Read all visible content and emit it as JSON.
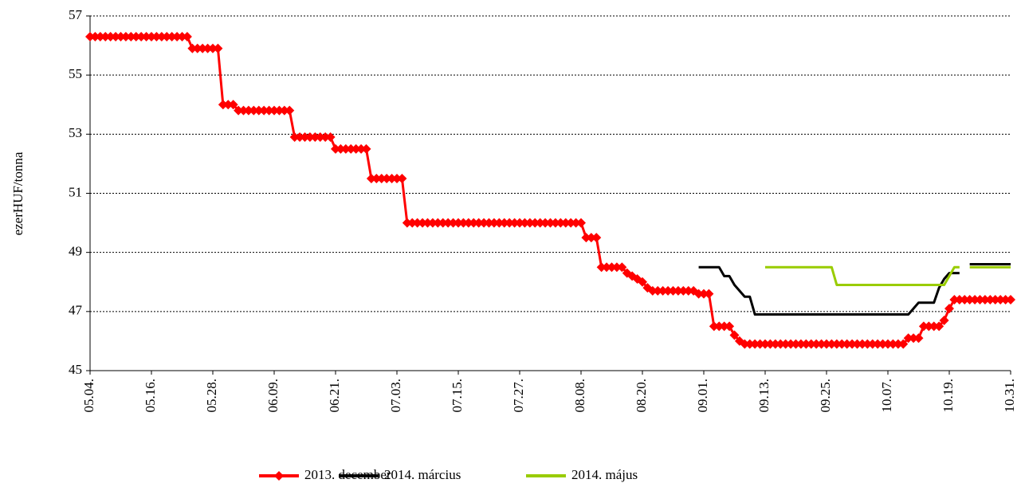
{
  "chart_data": {
    "type": "line",
    "y_label": "ezerHUF/tonna",
    "categories": [
      "05.04.",
      null,
      null,
      null,
      null,
      null,
      null,
      null,
      null,
      null,
      null,
      null,
      "05.16.",
      null,
      null,
      null,
      null,
      null,
      null,
      null,
      null,
      null,
      null,
      null,
      "05.28.",
      null,
      null,
      null,
      null,
      null,
      null,
      null,
      null,
      null,
      null,
      null,
      "06.09.",
      null,
      null,
      null,
      null,
      null,
      null,
      null,
      null,
      null,
      null,
      null,
      "06.21.",
      null,
      null,
      null,
      null,
      null,
      null,
      null,
      null,
      null,
      null,
      null,
      "07.03.",
      null,
      null,
      null,
      null,
      null,
      null,
      null,
      null,
      null,
      null,
      null,
      "07.15.",
      null,
      null,
      null,
      null,
      null,
      null,
      null,
      null,
      null,
      null,
      null,
      "07.27.",
      null,
      null,
      null,
      null,
      null,
      null,
      null,
      null,
      null,
      null,
      null,
      "08.08.",
      null,
      null,
      null,
      null,
      null,
      null,
      null,
      null,
      null,
      null,
      null,
      "08.20.",
      null,
      null,
      null,
      null,
      null,
      null,
      null,
      null,
      null,
      null,
      null,
      "09.01.",
      null,
      null,
      null,
      null,
      null,
      null,
      null,
      null,
      null,
      null,
      null,
      "09.13.",
      null,
      null,
      null,
      null,
      null,
      null,
      null,
      null,
      null,
      null,
      null,
      "09.25.",
      null,
      null,
      null,
      null,
      null,
      null,
      null,
      null,
      null,
      null,
      null,
      "10.07.",
      null,
      null,
      null,
      null,
      null,
      null,
      null,
      null,
      null,
      null,
      null,
      "10.19.",
      null,
      null,
      null,
      null,
      null,
      null,
      null,
      null,
      null,
      null,
      null,
      "10.31."
    ],
    "series": [
      {
        "name": "2013. december",
        "color": "#ff0000",
        "marker": "diamond",
        "values": [
          56.3,
          56.3,
          56.3,
          56.3,
          56.3,
          56.3,
          56.3,
          56.3,
          56.3,
          56.3,
          56.3,
          56.3,
          56.3,
          56.3,
          56.3,
          56.3,
          56.3,
          56.3,
          56.3,
          56.3,
          55.9,
          55.9,
          55.9,
          55.9,
          55.9,
          55.9,
          54,
          54,
          54,
          53.8,
          53.8,
          53.8,
          53.8,
          53.8,
          53.8,
          53.8,
          53.8,
          53.8,
          53.8,
          53.8,
          52.9,
          52.9,
          52.9,
          52.9,
          52.9,
          52.9,
          52.9,
          52.9,
          52.5,
          52.5,
          52.5,
          52.5,
          52.5,
          52.5,
          52.5,
          51.5,
          51.5,
          51.5,
          51.5,
          51.5,
          51.5,
          51.5,
          50,
          50,
          50,
          50,
          50,
          50,
          50,
          50,
          50,
          50,
          50,
          50,
          50,
          50,
          50,
          50,
          50,
          50,
          50,
          50,
          50,
          50,
          50,
          50,
          50,
          50,
          50,
          50,
          50,
          50,
          50,
          50,
          50,
          50,
          50,
          49.5,
          49.5,
          49.5,
          48.5,
          48.5,
          48.5,
          48.5,
          48.5,
          48.3,
          48.2,
          48.1,
          48,
          47.8,
          47.7,
          47.7,
          47.7,
          47.7,
          47.7,
          47.7,
          47.7,
          47.7,
          47.7,
          47.6,
          47.6,
          47.6,
          46.5,
          46.5,
          46.5,
          46.5,
          46.2,
          46,
          45.9,
          45.9,
          45.9,
          45.9,
          45.9,
          45.9,
          45.9,
          45.9,
          45.9,
          45.9,
          45.9,
          45.9,
          45.9,
          45.9,
          45.9,
          45.9,
          45.9,
          45.9,
          45.9,
          45.9,
          45.9,
          45.9,
          45.9,
          45.9,
          45.9,
          45.9,
          45.9,
          45.9,
          45.9,
          45.9,
          45.9,
          45.9,
          46.1,
          46.1,
          46.1,
          46.5,
          46.5,
          46.5,
          46.5,
          46.7,
          47.1,
          47.4,
          47.4,
          47.4,
          47.4,
          47.4,
          47.4,
          47.4,
          47.4,
          47.4,
          47.4,
          47.4,
          47.4
        ]
      },
      {
        "name": "2014. március",
        "color": "#000000",
        "values": [
          null,
          null,
          null,
          null,
          null,
          null,
          null,
          null,
          null,
          null,
          null,
          null,
          null,
          null,
          null,
          null,
          null,
          null,
          null,
          null,
          null,
          null,
          null,
          null,
          null,
          null,
          null,
          null,
          null,
          null,
          null,
          null,
          null,
          null,
          null,
          null,
          null,
          null,
          null,
          null,
          null,
          null,
          null,
          null,
          null,
          null,
          null,
          null,
          null,
          null,
          null,
          null,
          null,
          null,
          null,
          null,
          null,
          null,
          null,
          null,
          null,
          null,
          null,
          null,
          null,
          null,
          null,
          null,
          null,
          null,
          null,
          null,
          null,
          null,
          null,
          null,
          null,
          null,
          null,
          null,
          null,
          null,
          null,
          null,
          null,
          null,
          null,
          null,
          null,
          null,
          null,
          null,
          null,
          null,
          null,
          null,
          null,
          null,
          null,
          null,
          null,
          null,
          null,
          null,
          null,
          null,
          null,
          null,
          null,
          null,
          null,
          null,
          null,
          null,
          null,
          null,
          null,
          null,
          null,
          48.5,
          48.5,
          48.5,
          48.5,
          48.5,
          48.2,
          48.2,
          47.9,
          47.7,
          47.5,
          47.5,
          46.9,
          46.9,
          46.9,
          46.9,
          46.9,
          46.9,
          46.9,
          46.9,
          46.9,
          46.9,
          46.9,
          46.9,
          46.9,
          46.9,
          46.9,
          46.9,
          46.9,
          46.9,
          46.9,
          46.9,
          46.9,
          46.9,
          46.9,
          46.9,
          46.9,
          46.9,
          46.9,
          46.9,
          46.9,
          46.9,
          46.9,
          47.1,
          47.3,
          47.3,
          47.3,
          47.3,
          47.8,
          48.1,
          48.3,
          48.3,
          48.3,
          null,
          48.6,
          48.6,
          48.6,
          48.6,
          48.6,
          48.6,
          48.6,
          48.6,
          48.6
        ]
      },
      {
        "name": "2014. május",
        "color": "#99cc00",
        "values": [
          null,
          null,
          null,
          null,
          null,
          null,
          null,
          null,
          null,
          null,
          null,
          null,
          null,
          null,
          null,
          null,
          null,
          null,
          null,
          null,
          null,
          null,
          null,
          null,
          null,
          null,
          null,
          null,
          null,
          null,
          null,
          null,
          null,
          null,
          null,
          null,
          null,
          null,
          null,
          null,
          null,
          null,
          null,
          null,
          null,
          null,
          null,
          null,
          null,
          null,
          null,
          null,
          null,
          null,
          null,
          null,
          null,
          null,
          null,
          null,
          null,
          null,
          null,
          null,
          null,
          null,
          null,
          null,
          null,
          null,
          null,
          null,
          null,
          null,
          null,
          null,
          null,
          null,
          null,
          null,
          null,
          null,
          null,
          null,
          null,
          null,
          null,
          null,
          null,
          null,
          null,
          null,
          null,
          null,
          null,
          null,
          null,
          null,
          null,
          null,
          null,
          null,
          null,
          null,
          null,
          null,
          null,
          null,
          null,
          null,
          null,
          null,
          null,
          null,
          null,
          null,
          null,
          null,
          null,
          null,
          null,
          null,
          null,
          null,
          null,
          null,
          null,
          null,
          null,
          null,
          null,
          null,
          48.5,
          48.5,
          48.5,
          48.5,
          48.5,
          48.5,
          48.5,
          48.5,
          48.5,
          48.5,
          48.5,
          48.5,
          48.5,
          48.5,
          47.9,
          47.9,
          47.9,
          47.9,
          47.9,
          47.9,
          47.9,
          47.9,
          47.9,
          47.9,
          47.9,
          47.9,
          47.9,
          47.9,
          47.9,
          47.9,
          47.9,
          47.9,
          47.9,
          47.9,
          47.9,
          47.9,
          48.2,
          48.5,
          48.5,
          null,
          48.5,
          48.5,
          48.5,
          48.5,
          48.5,
          48.5,
          48.5,
          48.5,
          48.5
        ]
      }
    ],
    "ylim": [
      45,
      57
    ],
    "yticks": [
      45,
      47,
      49,
      51,
      53,
      55,
      57
    ],
    "grid": true,
    "legend": "bottom"
  }
}
